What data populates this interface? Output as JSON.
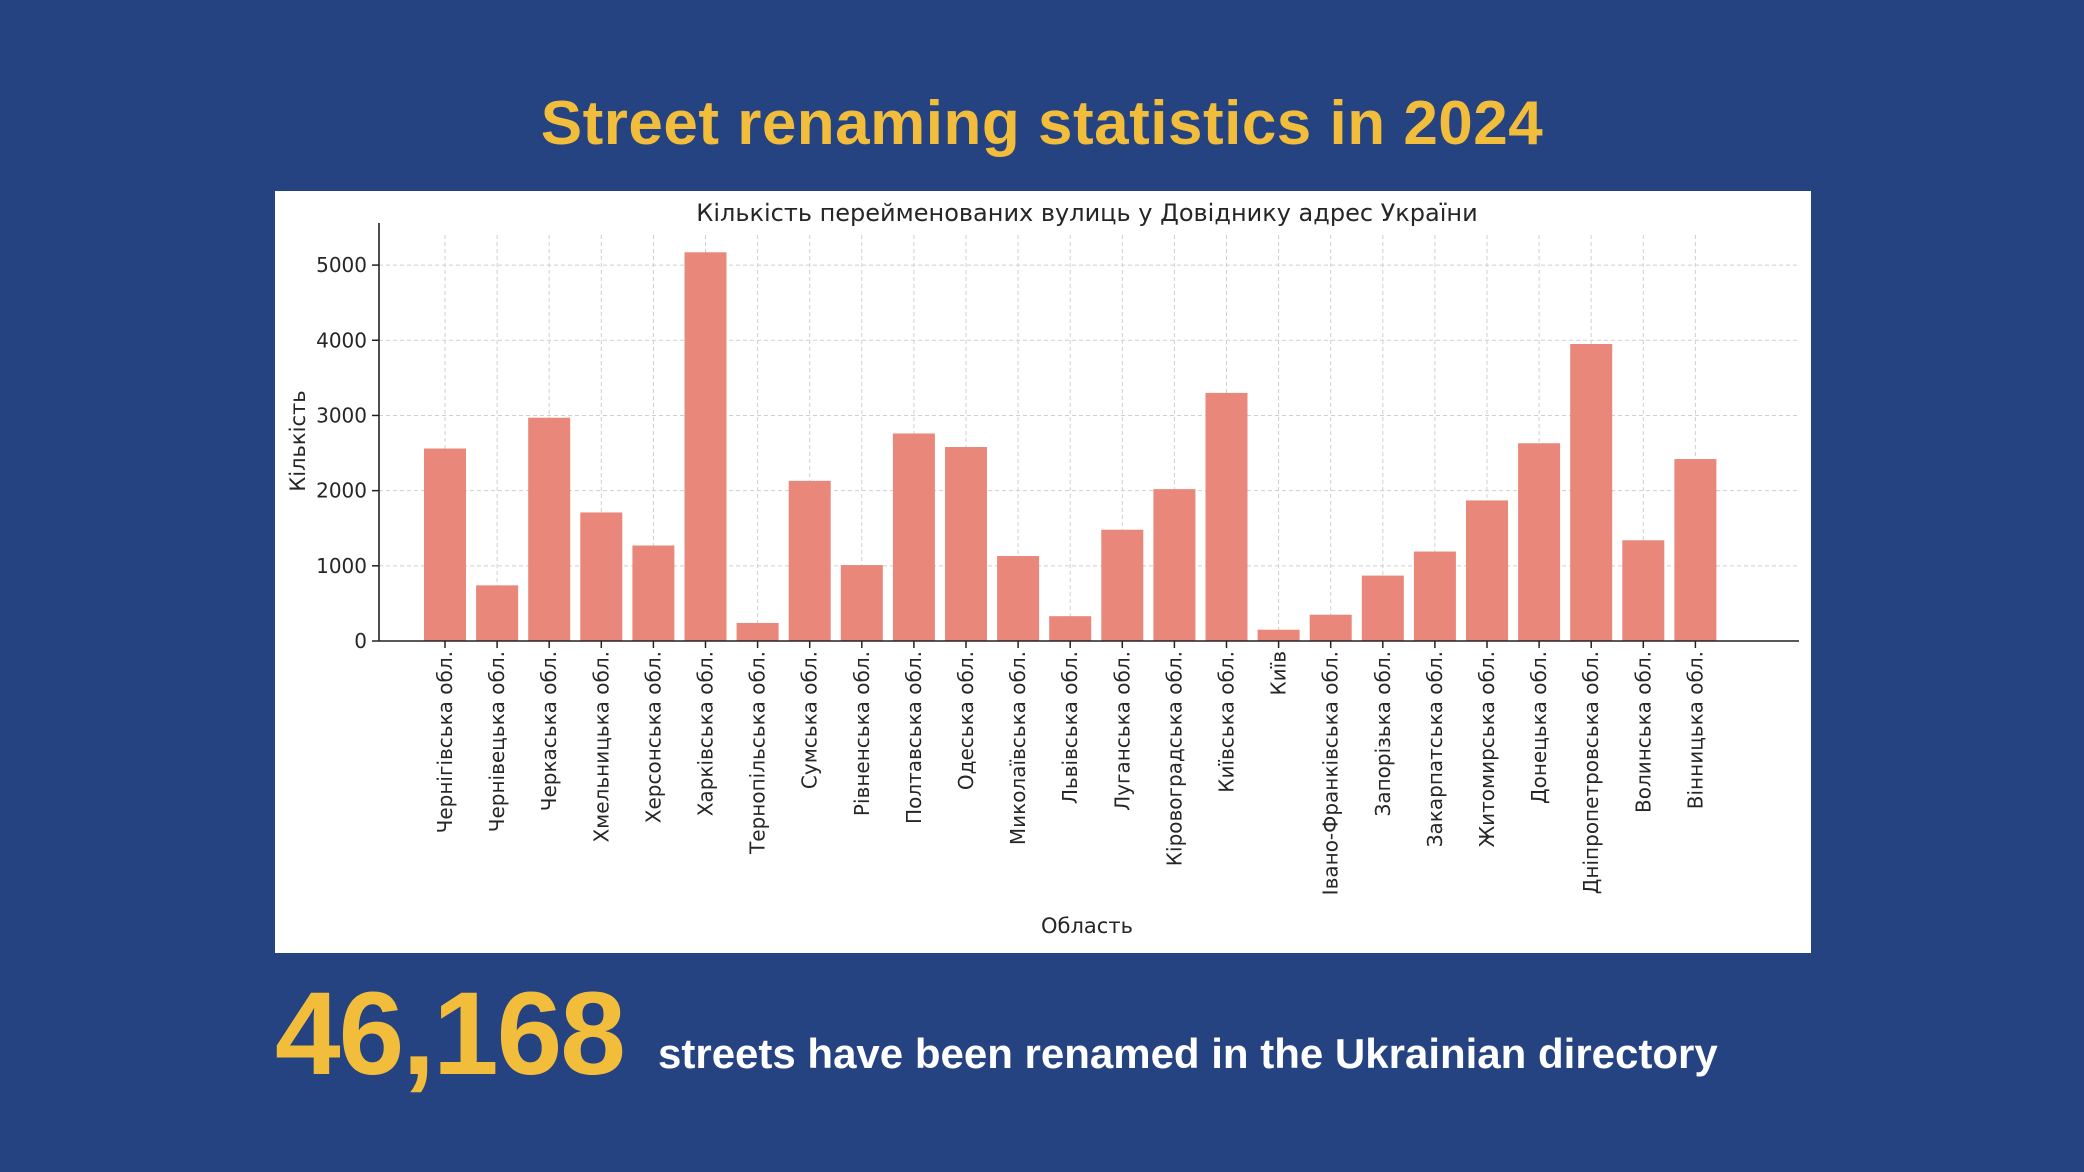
{
  "headline": "Street renaming statistics in 2024",
  "colors": {
    "background": "#264381",
    "accent": "#f2bd3b",
    "bar": "#e8877a",
    "panel": "#ffffff"
  },
  "stat": {
    "number": "46,168",
    "text": "streets have been renamed in the Ukrainian directory"
  },
  "chart_data": {
    "type": "bar",
    "title": "Кількість перейменованих вулиць у Довіднику адрес України",
    "xlabel": "Область",
    "ylabel": "Кількість",
    "ylim": [
      0,
      5400
    ],
    "yticks": [
      0,
      1000,
      2000,
      3000,
      4000,
      5000
    ],
    "grid": true,
    "categories": [
      "Чернігівська обл.",
      "Чернівецька обл.",
      "Черкаська обл.",
      "Хмельницька обл.",
      "Херсонська обл.",
      "Харківська обл.",
      "Тернопільська обл.",
      "Сумська обл.",
      "Рівненська обл.",
      "Полтавська обл.",
      "Одеська обл.",
      "Миколаївська обл.",
      "Львівська обл.",
      "Луганська обл.",
      "Кіровоградська обл.",
      "Київська обл.",
      "Київ",
      "Івано-Франківська обл.",
      "Запорізька обл.",
      "Закарпатська обл.",
      "Житомирська обл.",
      "Донецька обл.",
      "Дніпропетровська обл.",
      "Волинська обл.",
      "Вінницька обл."
    ],
    "values": [
      2560,
      740,
      2970,
      1710,
      1270,
      5170,
      240,
      2130,
      1010,
      2760,
      2580,
      1130,
      330,
      1480,
      2020,
      3300,
      150,
      350,
      870,
      1190,
      1870,
      2630,
      3950,
      1340,
      2420
    ]
  }
}
